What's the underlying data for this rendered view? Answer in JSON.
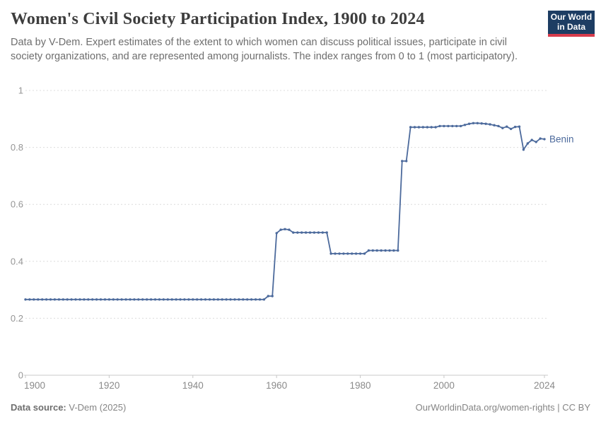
{
  "header": {
    "title": "Women's Civil Society Participation Index, 1900 to 2024",
    "subtitle": "Data by V-Dem. Expert estimates of the extent to which women can discuss political issues, participate in civil society organizations, and are represented among journalists. The index ranges from 0 to 1 (most participatory)."
  },
  "logo": {
    "line1": "Our World",
    "line2": "in Data",
    "bg_color": "#1d3d63",
    "bar_color": "#d73c4c"
  },
  "chart_data": {
    "type": "line",
    "title": "Women's Civil Society Participation Index, 1900 to 2024",
    "xlabel": "",
    "ylabel": "",
    "xlim": [
      1900,
      2024
    ],
    "ylim": [
      0,
      1
    ],
    "grid": "dashed-horizontal",
    "legend_position": "end-of-line-label",
    "x_ticks": [
      1900,
      1920,
      1940,
      1960,
      1980,
      2000,
      2024
    ],
    "y_ticks": [
      {
        "v": 0,
        "label": "0"
      },
      {
        "v": 0.2,
        "label": "0.2"
      },
      {
        "v": 0.4,
        "label": "0.4"
      },
      {
        "v": 0.6,
        "label": "0.6"
      },
      {
        "v": 0.8,
        "label": "0.8"
      },
      {
        "v": 1,
        "label": "1"
      }
    ],
    "series": [
      {
        "name": "Benin",
        "color": "#4c6a9c",
        "year_start": 1900,
        "values": [
          0.266,
          0.266,
          0.266,
          0.266,
          0.266,
          0.266,
          0.266,
          0.266,
          0.266,
          0.266,
          0.266,
          0.266,
          0.266,
          0.266,
          0.266,
          0.266,
          0.266,
          0.266,
          0.266,
          0.266,
          0.266,
          0.266,
          0.266,
          0.266,
          0.266,
          0.266,
          0.266,
          0.266,
          0.266,
          0.266,
          0.266,
          0.266,
          0.266,
          0.266,
          0.266,
          0.266,
          0.266,
          0.266,
          0.266,
          0.266,
          0.266,
          0.266,
          0.266,
          0.266,
          0.266,
          0.266,
          0.266,
          0.266,
          0.266,
          0.266,
          0.266,
          0.266,
          0.266,
          0.266,
          0.266,
          0.266,
          0.266,
          0.266,
          0.278,
          0.278,
          0.499,
          0.511,
          0.513,
          0.511,
          0.501,
          0.501,
          0.501,
          0.501,
          0.501,
          0.501,
          0.501,
          0.501,
          0.501,
          0.427,
          0.427,
          0.427,
          0.427,
          0.427,
          0.427,
          0.427,
          0.427,
          0.427,
          0.438,
          0.438,
          0.438,
          0.438,
          0.438,
          0.438,
          0.438,
          0.438,
          0.752,
          0.752,
          0.871,
          0.871,
          0.871,
          0.871,
          0.871,
          0.871,
          0.871,
          0.875,
          0.875,
          0.875,
          0.875,
          0.875,
          0.875,
          0.879,
          0.883,
          0.885,
          0.885,
          0.884,
          0.883,
          0.881,
          0.878,
          0.875,
          0.868,
          0.873,
          0.865,
          0.872,
          0.873,
          0.792,
          0.814,
          0.826,
          0.819,
          0.831,
          0.829
        ]
      }
    ]
  },
  "footer": {
    "source_label": "Data source:",
    "source_value": " V-Dem (2025)",
    "right_text": "OurWorldinData.org/women-rights | CC BY"
  }
}
